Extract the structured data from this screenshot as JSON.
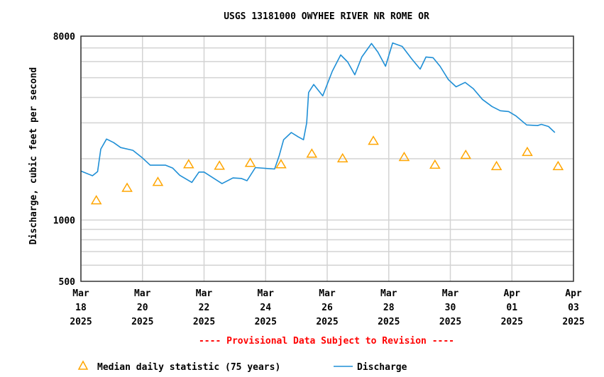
{
  "chart_data": {
    "type": "line",
    "title": "USGS 13181000 OWYHEE RIVER NR ROME OR",
    "ylabel": "Discharge, cubic feet per second",
    "xlabel": "",
    "yscale": "log",
    "ylim": [
      500,
      8000
    ],
    "xlim": [
      "2025-03-18T00:00",
      "2025-04-03T00:00"
    ],
    "y_ticks": [
      "8000",
      "1000",
      "500"
    ],
    "y_tick_values": [
      8000,
      1000,
      500
    ],
    "y_minor_grid": [
      600,
      700,
      800,
      900,
      1000,
      2000,
      3000,
      4000,
      5000,
      6000,
      7000
    ],
    "x_ticks": [
      {
        "date": "2025-03-18",
        "label": [
          "Mar",
          "18",
          "2025"
        ]
      },
      {
        "date": "2025-03-20",
        "label": [
          "Mar",
          "20",
          "2025"
        ]
      },
      {
        "date": "2025-03-22",
        "label": [
          "Mar",
          "22",
          "2025"
        ]
      },
      {
        "date": "2025-03-24",
        "label": [
          "Mar",
          "24",
          "2025"
        ]
      },
      {
        "date": "2025-03-26",
        "label": [
          "Mar",
          "26",
          "2025"
        ]
      },
      {
        "date": "2025-03-28",
        "label": [
          "Mar",
          "28",
          "2025"
        ]
      },
      {
        "date": "2025-03-30",
        "label": [
          "Mar",
          "30",
          "2025"
        ]
      },
      {
        "date": "2025-04-01",
        "label": [
          "Apr",
          "01",
          "2025"
        ]
      },
      {
        "date": "2025-04-03",
        "label": [
          "Apr",
          "03",
          "2025"
        ]
      }
    ],
    "grid": true,
    "legend_position": "bottom",
    "annotation": "---- Provisional Data Subject to Revision ----",
    "colors": {
      "discharge": "#1f8fd6",
      "median": "#ffa500",
      "annotation": "#ff0000"
    },
    "series": [
      {
        "name": "Median daily statistic (75 years)",
        "type": "scatter",
        "marker": "triangle",
        "points": [
          [
            "2025-03-18T12:00",
            1250
          ],
          [
            "2025-03-19T12:00",
            1440
          ],
          [
            "2025-03-20T12:00",
            1540
          ],
          [
            "2025-03-21T12:00",
            1880
          ],
          [
            "2025-03-22T12:00",
            1850
          ],
          [
            "2025-03-23T12:00",
            1910
          ],
          [
            "2025-03-24T12:00",
            1880
          ],
          [
            "2025-03-25T12:00",
            2120
          ],
          [
            "2025-03-26T12:00",
            2010
          ],
          [
            "2025-03-27T12:00",
            2450
          ],
          [
            "2025-03-28T12:00",
            2040
          ],
          [
            "2025-03-29T12:00",
            1870
          ],
          [
            "2025-03-30T12:00",
            2090
          ],
          [
            "2025-03-31T12:00",
            1840
          ],
          [
            "2025-04-01T12:00",
            2160
          ],
          [
            "2025-04-02T12:00",
            1840
          ]
        ]
      },
      {
        "name": "Discharge",
        "type": "line",
        "points": [
          [
            "2025-03-18T00:00",
            1740
          ],
          [
            "2025-03-18T09:00",
            1650
          ],
          [
            "2025-03-18T13:00",
            1730
          ],
          [
            "2025-03-18T15:30",
            2230
          ],
          [
            "2025-03-18T20:00",
            2500
          ],
          [
            "2025-03-19T01:30",
            2400
          ],
          [
            "2025-03-19T07:00",
            2270
          ],
          [
            "2025-03-19T16:30",
            2200
          ],
          [
            "2025-03-19T23:30",
            2030
          ],
          [
            "2025-03-20T06:00",
            1860
          ],
          [
            "2025-03-20T18:00",
            1860
          ],
          [
            "2025-03-20T23:30",
            1800
          ],
          [
            "2025-03-21T05:00",
            1660
          ],
          [
            "2025-03-21T14:30",
            1530
          ],
          [
            "2025-03-21T20:00",
            1720
          ],
          [
            "2025-03-22T00:00",
            1720
          ],
          [
            "2025-03-22T14:00",
            1510
          ],
          [
            "2025-03-22T22:30",
            1610
          ],
          [
            "2025-03-23T05:00",
            1600
          ],
          [
            "2025-03-23T09:30",
            1560
          ],
          [
            "2025-03-23T16:00",
            1810
          ],
          [
            "2025-03-24T07:00",
            1780
          ],
          [
            "2025-03-24T10:30",
            2060
          ],
          [
            "2025-03-24T14:00",
            2480
          ],
          [
            "2025-03-24T20:00",
            2690
          ],
          [
            "2025-03-25T01:30",
            2560
          ],
          [
            "2025-03-25T05:30",
            2480
          ],
          [
            "2025-03-25T08:00",
            3000
          ],
          [
            "2025-03-25T09:30",
            4230
          ],
          [
            "2025-03-25T13:30",
            4630
          ],
          [
            "2025-03-25T20:30",
            4070
          ],
          [
            "2025-03-26T04:00",
            5380
          ],
          [
            "2025-03-26T10:30",
            6470
          ],
          [
            "2025-03-26T16:00",
            5970
          ],
          [
            "2025-03-26T21:30",
            5170
          ],
          [
            "2025-03-27T03:00",
            6320
          ],
          [
            "2025-03-27T10:30",
            7360
          ],
          [
            "2025-03-27T15:30",
            6680
          ],
          [
            "2025-03-27T21:30",
            5690
          ],
          [
            "2025-03-28T03:00",
            7410
          ],
          [
            "2025-03-28T10:30",
            7120
          ],
          [
            "2025-03-28T18:00",
            6170
          ],
          [
            "2025-03-29T00:30",
            5510
          ],
          [
            "2025-03-29T05:00",
            6320
          ],
          [
            "2025-03-29T10:30",
            6270
          ],
          [
            "2025-03-29T16:00",
            5690
          ],
          [
            "2025-03-29T22:30",
            4890
          ],
          [
            "2025-03-30T04:30",
            4510
          ],
          [
            "2025-03-30T11:30",
            4740
          ],
          [
            "2025-03-30T18:00",
            4410
          ],
          [
            "2025-03-31T01:00",
            3910
          ],
          [
            "2025-03-31T08:30",
            3610
          ],
          [
            "2025-03-31T15:00",
            3440
          ],
          [
            "2025-03-31T21:30",
            3410
          ],
          [
            "2025-04-01T03:00",
            3250
          ],
          [
            "2025-04-01T11:30",
            2930
          ],
          [
            "2025-04-01T20:00",
            2910
          ],
          [
            "2025-04-01T23:00",
            2950
          ],
          [
            "2025-04-02T04:30",
            2880
          ],
          [
            "2025-04-02T09:30",
            2690
          ]
        ]
      }
    ]
  },
  "legend": {
    "median_label": "Median daily statistic (75 years)",
    "discharge_label": "Discharge"
  }
}
